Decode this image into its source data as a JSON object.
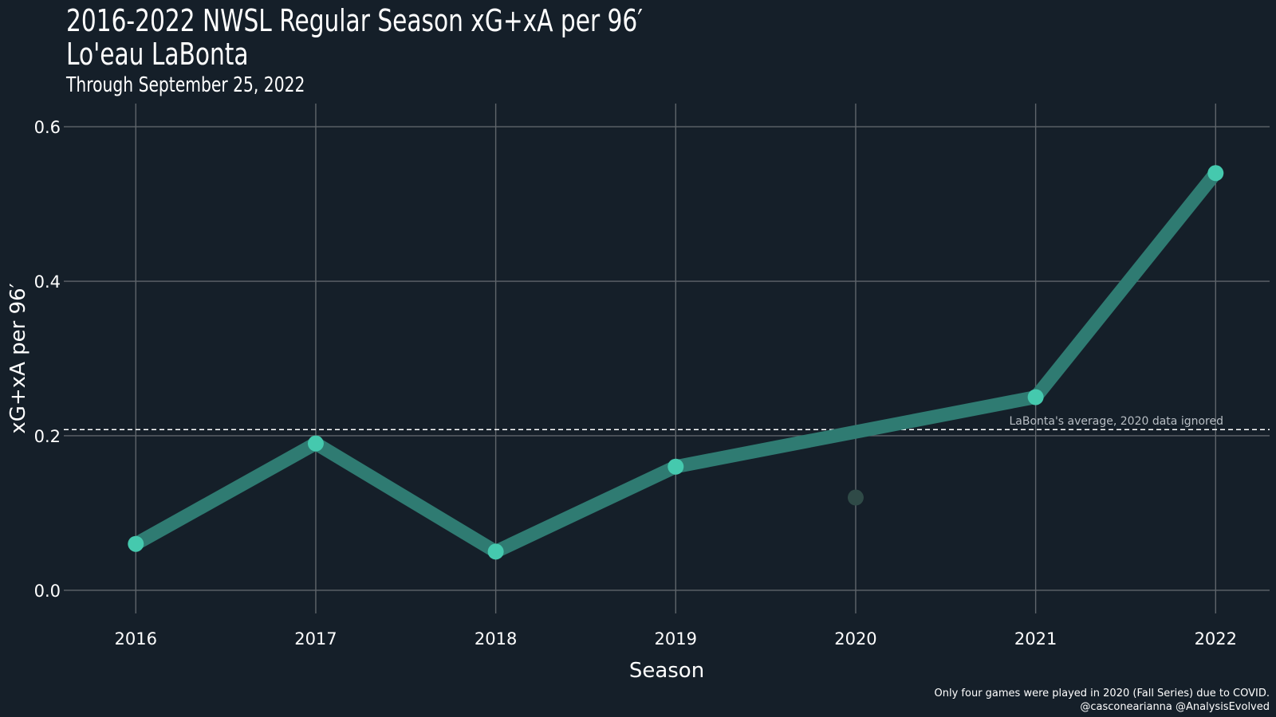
{
  "header": {
    "title_line1": "2016-2022 NWSL Regular Season xG+xA per 96′",
    "title_line2": "Lo'eau LaBonta",
    "subtitle": "Through September 25, 2022"
  },
  "caption": {
    "line1": "Only four games were played in 2020 (Fall Series) due to COVID.",
    "line2": "@casconearianna @AnalysisEvolved"
  },
  "colors": {
    "background": "#151f29",
    "grid": "#5f656b",
    "line": "#2f7b72",
    "point": "#45c9ae",
    "point_muted": "#2f4a47",
    "reference": "#ffffff"
  },
  "chart_data": {
    "type": "line",
    "xlabel": "Season",
    "ylabel": "xG+xA per 96′",
    "x": [
      2016,
      2017,
      2018,
      2019,
      2020,
      2021,
      2022
    ],
    "series": [
      {
        "values": [
          0.06,
          0.19,
          0.05,
          0.16,
          0.205,
          0.25,
          0.54
        ]
      }
    ],
    "excluded_points": [
      {
        "x": 2020,
        "y": 0.12
      }
    ],
    "reference_line": {
      "y": 0.208,
      "label": "LaBonta's average, 2020 data ignored",
      "style": "dashed"
    },
    "xlim": [
      2015.6,
      2022.3
    ],
    "ylim": [
      -0.03,
      0.63
    ],
    "x_ticks": [
      "2016",
      "2017",
      "2018",
      "2019",
      "2020",
      "2021",
      "2022"
    ],
    "y_ticks": [
      "0.0",
      "0.2",
      "0.4",
      "0.6"
    ],
    "grid": true,
    "legend": "none"
  }
}
